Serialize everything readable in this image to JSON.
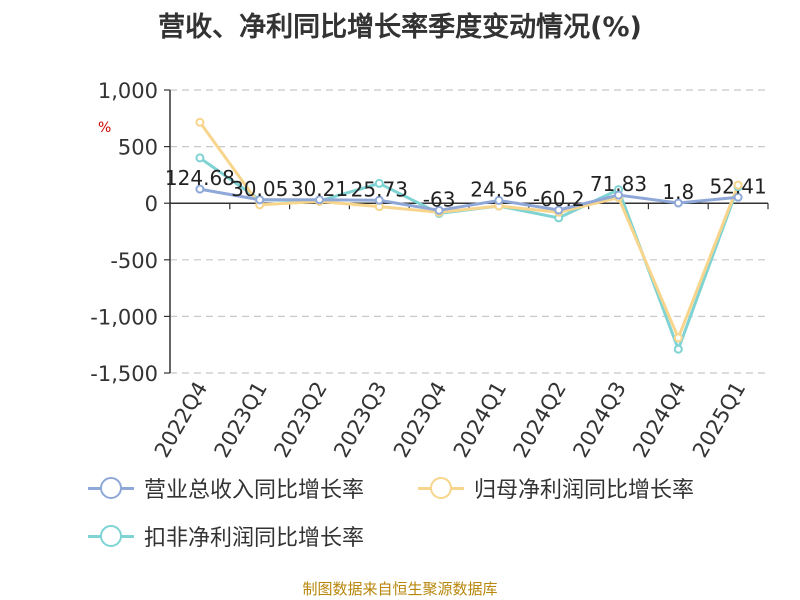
{
  "title": "营收、净利同比增长率季度变动情况(%)",
  "unit_label": "%",
  "source": "制图数据来自恒生聚源数据库",
  "chart_data": {
    "type": "line",
    "categories": [
      "2022Q4",
      "2023Q1",
      "2023Q2",
      "2023Q3",
      "2023Q4",
      "2024Q1",
      "2024Q2",
      "2024Q3",
      "2024Q4",
      "2025Q1"
    ],
    "ylim": [
      -1500,
      1000
    ],
    "yticks": [
      1000,
      500,
      0,
      -500,
      -1000,
      -1500
    ],
    "ytick_labels": [
      "1,000",
      "500",
      "0",
      "-500",
      "-1,000",
      "-1,500"
    ],
    "grid": true,
    "legend_position": "bottom",
    "series": [
      {
        "name": "营业总收入同比增长率",
        "color": "#8fa8d8",
        "values": [
          124.68,
          30.05,
          30.21,
          25.73,
          -63,
          24.56,
          -60.2,
          71.83,
          1.8,
          52.41
        ],
        "labels": [
          "124.68",
          "30.05",
          "30.21",
          "25.73",
          "-63",
          "24.56",
          "-60.2",
          "71.83",
          "1.8",
          "52.41"
        ]
      },
      {
        "name": "归母净利润同比增长率",
        "color": "#f7d58c",
        "values": [
          715,
          -15,
          15,
          -30,
          -80,
          -25,
          -80,
          50,
          -1190,
          160
        ]
      },
      {
        "name": "扣非净利润同比增长率",
        "color": "#7fd3d3",
        "values": [
          400,
          30,
          20,
          175,
          -90,
          -25,
          -130,
          120,
          -1290,
          145
        ]
      }
    ]
  }
}
